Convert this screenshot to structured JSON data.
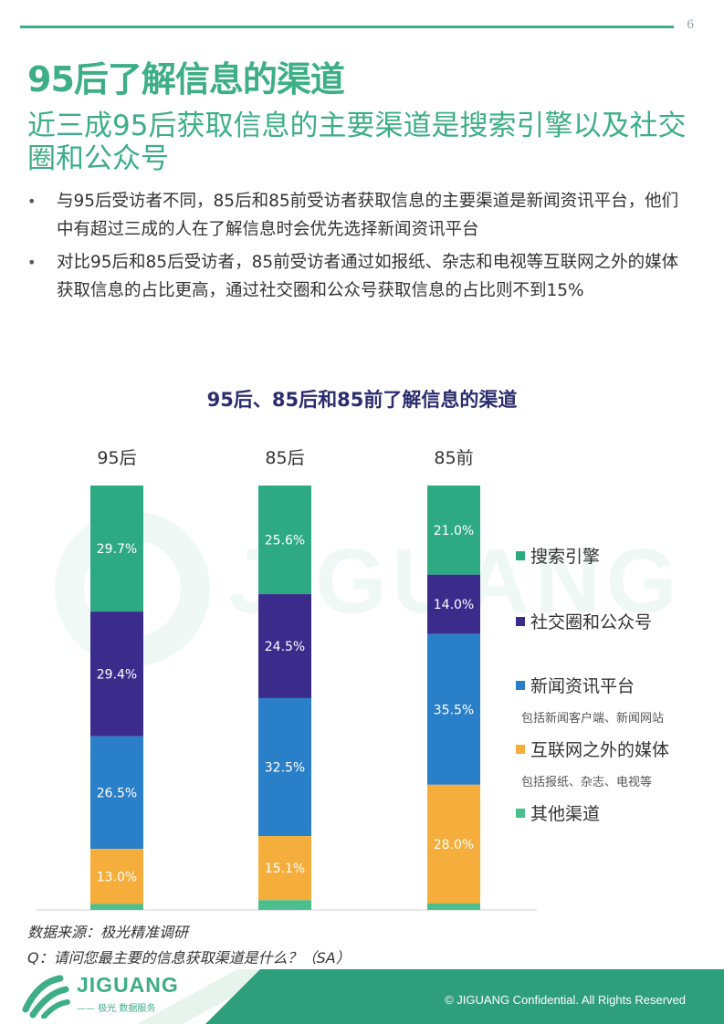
{
  "header": {
    "page_number": "6",
    "title": "95后了解信息的渠道",
    "subtitle": "近三成95后获取信息的主要渠道是搜索引擎以及社交圈和公众号"
  },
  "bullets": [
    "与95后受访者不同，85后和85前受访者获取信息的主要渠道是新闻资讯平台，他们中有超过三成的人在了解信息时会优先选择新闻资讯平台",
    "对比95后和85后受访者，85前受访者通过如报纸、杂志和电视等互联网之外的媒体获取信息的占比更高，通过社交圈和公众号获取信息的占比则不到15%"
  ],
  "bullet_glyph": "•",
  "chart_data": {
    "type": "bar",
    "stacked": true,
    "title": "95后、85后和85前了解信息的渠道",
    "categories": [
      "95后",
      "85后",
      "85前"
    ],
    "ylim": [
      0,
      100
    ],
    "legend_position": "right",
    "series": [
      {
        "name": "搜索引擎",
        "color": "#2eaa82",
        "values": [
          29.7,
          25.6,
          21.0
        ],
        "labels": [
          "29.7%",
          "25.6%",
          "21.0%"
        ]
      },
      {
        "name": "社交圈和公众号",
        "color": "#3b2c8c",
        "values": [
          29.4,
          24.5,
          14.0
        ],
        "labels": [
          "29.4%",
          "24.5%",
          "14.0%"
        ]
      },
      {
        "name": "新闻资讯平台",
        "note": "包括新闻客户端、新闻网站",
        "color": "#2a7fc9",
        "values": [
          26.5,
          32.5,
          35.5
        ],
        "labels": [
          "26.5%",
          "32.5%",
          "35.5%"
        ]
      },
      {
        "name": "互联网之外的媒体",
        "note": "包括报纸、杂志、电视等",
        "color": "#f5ae3c",
        "values": [
          13.0,
          15.1,
          28.0
        ],
        "labels": [
          "13.0%",
          "15.1%",
          "28.0%"
        ]
      },
      {
        "name": "其他渠道",
        "color": "#4dbf8f",
        "values": [
          1.4,
          2.3,
          1.5
        ],
        "labels": [
          "",
          "",
          ""
        ]
      }
    ]
  },
  "source": {
    "line1": "数据来源：极光精准调研",
    "line2": "Q：请问您最主要的信息获取渠道是什么？（SA）"
  },
  "footer": {
    "logo_text": "JIGUANG",
    "logo_sub": "—— 极光 数据服务",
    "copyright": "© JIGUANG  Confidential. All Rights Reserved"
  },
  "colors": {
    "accent": "#3dae86",
    "chart_title": "#2c2c6e",
    "footer_green": "#2f9e7a"
  }
}
